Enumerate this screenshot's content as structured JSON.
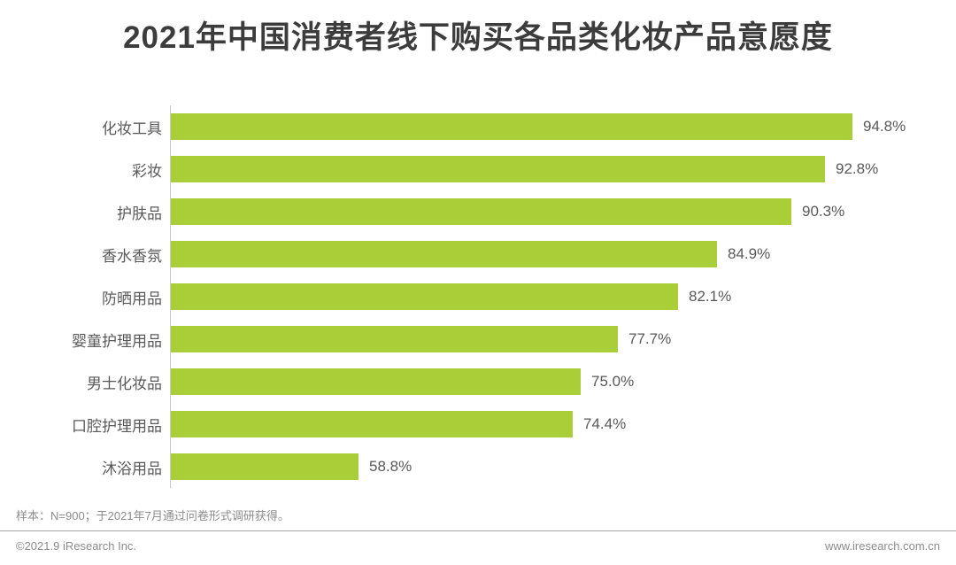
{
  "chart_data": {
    "type": "bar",
    "orientation": "horizontal",
    "title": "2021年中国消费者线下购买各品类化妆产品意愿度",
    "categories": [
      "化妆工具",
      "彩妆",
      "护肤品",
      "香水香氛",
      "防晒用品",
      "婴童护理用品",
      "男士化妆品",
      "口腔护理用品",
      "沐浴用品"
    ],
    "values": [
      94.8,
      92.8,
      90.3,
      84.9,
      82.1,
      77.7,
      75.0,
      74.4,
      58.8
    ],
    "value_labels": [
      "94.8%",
      "92.8%",
      "90.3%",
      "84.9%",
      "82.1%",
      "77.7%",
      "75.0%",
      "74.4%",
      "58.8%"
    ],
    "unit": "%",
    "xlim_effective": [
      45,
      96
    ],
    "grid": false,
    "legend": false,
    "bar_color": "#a9ce38"
  },
  "footer": {
    "note": "样本：N=900；于2021年7月通过问卷形式调研获得。",
    "copyright": "©2021.9 iResearch Inc.",
    "website": "www.iresearch.com.cn"
  },
  "colors": {
    "title_text": "#3c3c3c",
    "bar": "#a9ce38",
    "axis_line": "#c9c9c9",
    "label_text": "#595959",
    "footer_text": "#8c8c8c",
    "separator": "#a6a6a6",
    "background": "#ffffff"
  }
}
